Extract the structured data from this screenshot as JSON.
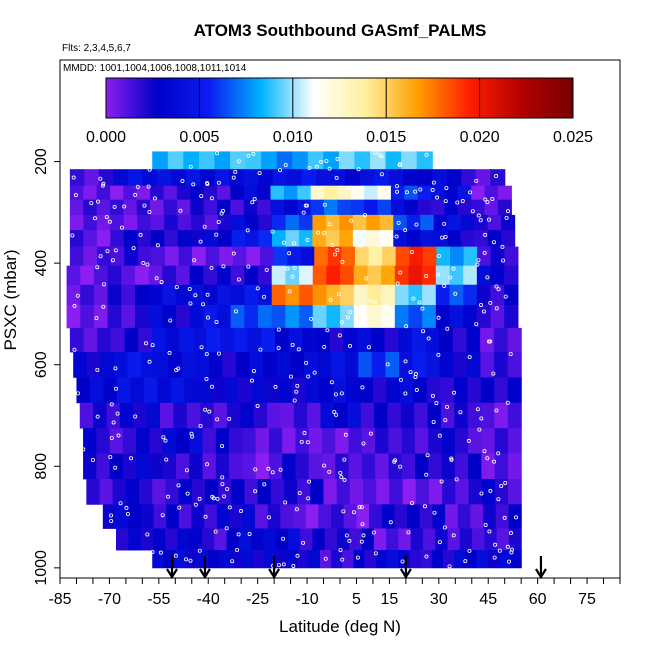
{
  "chart_data": {
    "type": "heatmap",
    "title": "ATOM3 Southbound GASmf_PALMS",
    "subtitle_flights": "Flts: 2,3,4,5,6,7",
    "subtitle_dates": "MMDD: 1001,1004,1006,1008,1011,1014",
    "xlabel": "Latitude (deg N)",
    "ylabel": "PSXC (mbar)",
    "xlim": [
      -85,
      85
    ],
    "ylim": [
      1020,
      0
    ],
    "x_ticks": [
      -85,
      -70,
      -55,
      -40,
      -25,
      -10,
      5,
      15,
      30,
      45,
      60,
      75
    ],
    "x_tick_labels": [
      "-85",
      "-70",
      "-55",
      "-40",
      "-25",
      "-10",
      "5",
      "15",
      "30",
      "45",
      "60",
      "75"
    ],
    "y_ticks": [
      200,
      400,
      600,
      800,
      1000
    ],
    "y_tick_labels": [
      "200",
      "400",
      "600",
      "800",
      "1000"
    ],
    "colorbar": {
      "min": 0.0,
      "max": 0.025,
      "ticks": [
        0.0,
        0.005,
        0.01,
        0.015,
        0.02,
        0.025
      ],
      "tick_labels": [
        "0.000",
        "0.005",
        "0.010",
        "0.015",
        "0.020",
        "0.025"
      ],
      "colors": [
        "#8b1ef0",
        "#0000c8",
        "#0a1ef0",
        "#00b4ff",
        "#ffffff",
        "#fff0a0",
        "#ffa000",
        "#ff1e00",
        "#b40000",
        "#780000"
      ]
    },
    "arrows_latitude": [
      -51,
      -41,
      -20,
      20,
      61
    ],
    "bands": [
      {
        "p": 195,
        "x0": -57,
        "x1": 28,
        "v": [
          0.009,
          0.009,
          0.008,
          0.008,
          0.009,
          0.009
        ]
      },
      {
        "p": 235,
        "x0": -82,
        "x1": 50,
        "v": [
          0.001,
          0.004,
          0.004,
          0.004,
          0.004,
          0.005,
          0.004,
          0.004,
          0.003,
          0.001
        ]
      },
      {
        "p": 260,
        "x0": -82,
        "x1": 52,
        "v": [
          0.001,
          0.001,
          0.002,
          0.002,
          0.003,
          0.008,
          0.013,
          0.011,
          0.006,
          0.004,
          0.001
        ]
      },
      {
        "p": 290,
        "x0": -82,
        "x1": 52,
        "v": [
          0.001,
          0.001,
          0.001,
          0.002,
          0.002,
          0.004,
          0.007,
          0.006,
          0.003,
          0.002,
          0.001
        ]
      },
      {
        "p": 320,
        "x0": -82,
        "x1": 53,
        "v": [
          0.001,
          0.001,
          0.002,
          0.002,
          0.003,
          0.006,
          0.016,
          0.016,
          0.006,
          0.004,
          0.002
        ]
      },
      {
        "p": 350,
        "x0": -82,
        "x1": 53,
        "v": [
          0.001,
          0.002,
          0.002,
          0.003,
          0.005,
          0.009,
          0.016,
          0.012,
          0.004,
          0.003,
          0.002
        ]
      },
      {
        "p": 385,
        "x0": -82,
        "x1": 54,
        "v": [
          0.001,
          0.002,
          0.001,
          0.001,
          0.001,
          0.005,
          0.018,
          0.014,
          0.019,
          0.008,
          0.002
        ]
      },
      {
        "p": 425,
        "x0": -83,
        "x1": 54,
        "v": [
          0.001,
          0.001,
          0.001,
          0.002,
          0.002,
          0.01,
          0.019,
          0.016,
          0.02,
          0.01,
          0.003
        ]
      },
      {
        "p": 460,
        "x0": -83,
        "x1": 54,
        "v": [
          0.001,
          0.002,
          0.004,
          0.004,
          0.005,
          0.018,
          0.016,
          0.013,
          0.009,
          0.006,
          0.002
        ]
      },
      {
        "p": 505,
        "x0": -83,
        "x1": 54,
        "v": [
          0.001,
          0.002,
          0.003,
          0.004,
          0.006,
          0.007,
          0.009,
          0.012,
          0.007,
          0.004,
          0.002
        ]
      },
      {
        "p": 550,
        "x0": -82,
        "x1": 55,
        "v": [
          0.001,
          0.002,
          0.004,
          0.005,
          0.005,
          0.004,
          0.003,
          0.003,
          0.004,
          0.002,
          0.001
        ]
      },
      {
        "p": 600,
        "x0": -81,
        "x1": 55,
        "v": [
          0.003,
          0.005,
          0.004,
          0.003,
          0.003,
          0.003,
          0.004,
          0.006,
          0.005,
          0.003,
          0.002
        ]
      },
      {
        "p": 650,
        "x0": -80,
        "x1": 55,
        "v": [
          0.003,
          0.004,
          0.004,
          0.003,
          0.003,
          0.003,
          0.004,
          0.003,
          0.003,
          0.002,
          0.002
        ]
      },
      {
        "p": 700,
        "x0": -79,
        "x1": 55,
        "v": [
          0.002,
          0.003,
          0.002,
          0.002,
          0.002,
          0.001,
          0.003,
          0.002,
          0.002,
          0.002,
          0.001
        ]
      },
      {
        "p": 750,
        "x0": -78,
        "x1": 55,
        "v": [
          0.002,
          0.002,
          0.003,
          0.002,
          0.001,
          0.001,
          0.001,
          0.002,
          0.002,
          0.002,
          0.001
        ]
      },
      {
        "p": 800,
        "x0": -78,
        "x1": 55,
        "v": [
          0.002,
          0.003,
          0.002,
          0.002,
          0.001,
          0.002,
          0.001,
          0.001,
          0.002,
          0.002,
          0.001
        ]
      },
      {
        "p": 850,
        "x0": -77,
        "x1": 55,
        "v": [
          0.002,
          0.002,
          0.002,
          0.002,
          0.002,
          0.002,
          0.001,
          0.001,
          0.001,
          0.002,
          0.002
        ]
      },
      {
        "p": 900,
        "x0": -72,
        "x1": 55,
        "v": [
          0.003,
          0.002,
          0.002,
          0.003,
          0.002,
          0.001,
          0.001,
          0.002,
          0.002,
          0.001,
          0.002
        ]
      },
      {
        "p": 945,
        "x0": -68,
        "x1": 55,
        "v": [
          0.003,
          0.003,
          0.002,
          0.003,
          0.003,
          0.002,
          0.002,
          0.001,
          0.002,
          0.002,
          0.002
        ]
      },
      {
        "p": 985,
        "x0": -57,
        "x1": 55,
        "v": [
          0.003,
          0.003,
          0.003,
          0.003,
          0.003,
          0.002,
          0.003,
          0.003,
          0.002,
          0.003,
          0.003
        ]
      }
    ]
  }
}
